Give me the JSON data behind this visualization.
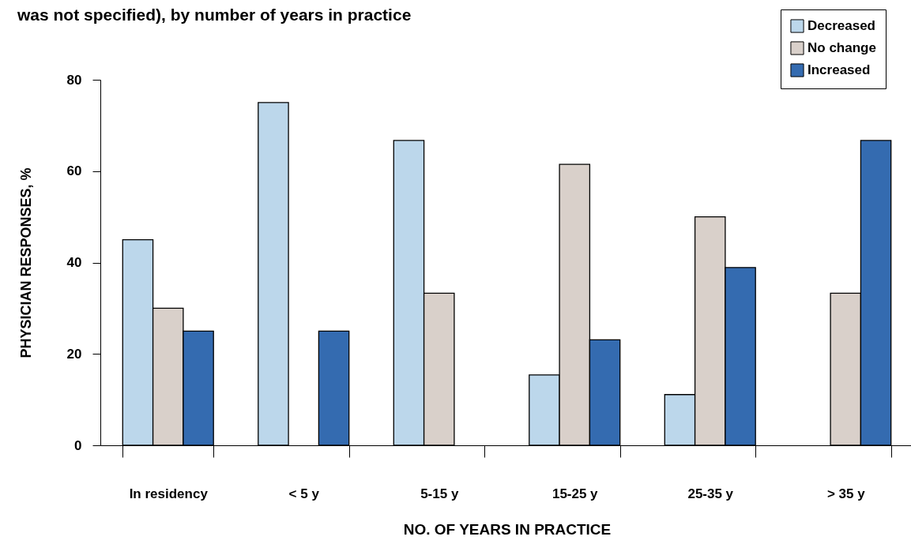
{
  "chart_data": {
    "type": "bar",
    "title": "was not specified), by number of years in practice",
    "xlabel": "NO. OF YEARS IN PRACTICE",
    "ylabel": "PHYSICIAN RESPONSES, %",
    "categories": [
      "In residency",
      "< 5 y",
      "5-15 y",
      "15-25 y",
      "25-35 y",
      "> 35 y"
    ],
    "series": [
      {
        "name": "Decreased",
        "color": "#bcd7eb",
        "values": [
          45,
          75,
          66.7,
          15.4,
          11.1,
          null
        ]
      },
      {
        "name": "No change",
        "color": "#d9d0ca",
        "values": [
          30,
          null,
          33.3,
          61.5,
          50,
          33.3
        ]
      },
      {
        "name": "Increased",
        "color": "#346bb0",
        "values": [
          25,
          25,
          null,
          23.1,
          38.9,
          66.7
        ]
      }
    ],
    "ylim": [
      0,
      80
    ],
    "yticks": [
      0,
      20,
      40,
      60,
      80
    ],
    "grid": false,
    "legend": "top right"
  }
}
